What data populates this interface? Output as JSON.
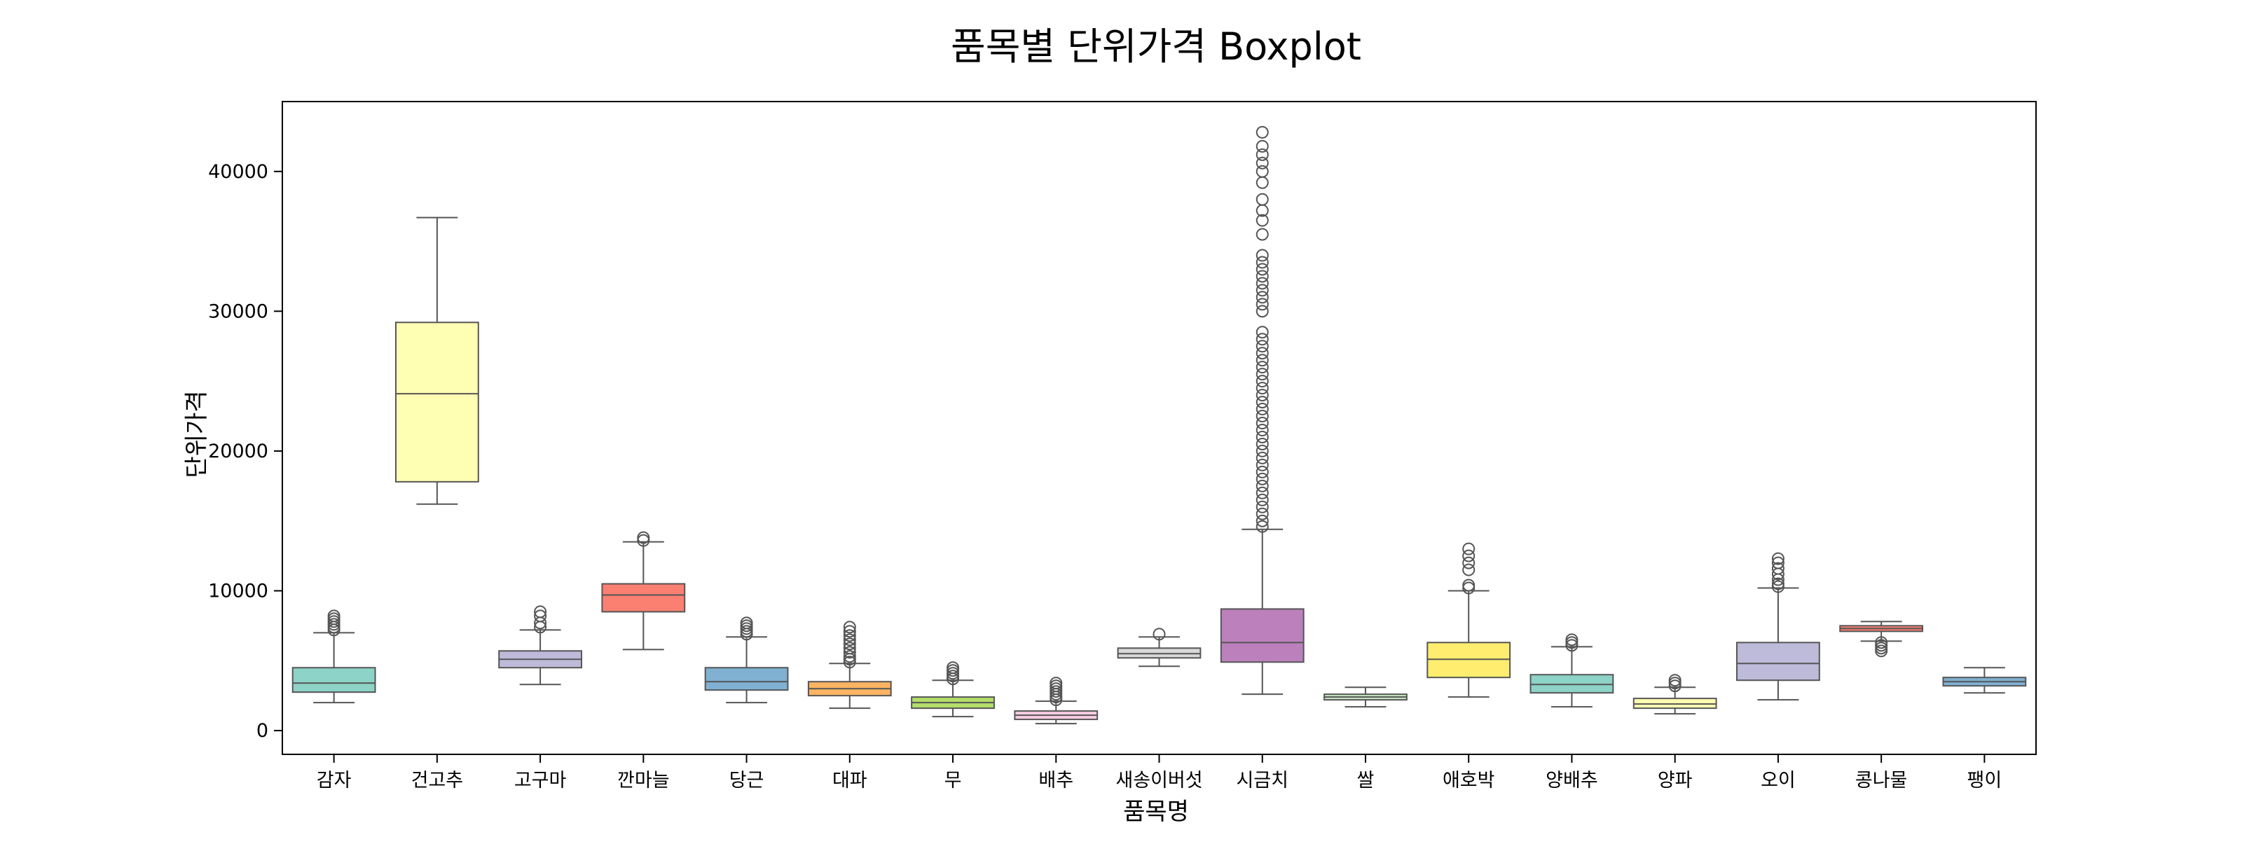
{
  "chart_data": {
    "type": "boxplot",
    "title": "품목별 단위가격 Boxplot",
    "xlabel": "품목명",
    "ylabel": "단위가격",
    "ylim": [
      -1700,
      45000
    ],
    "yticks": [
      0,
      10000,
      20000,
      30000,
      40000
    ],
    "grid": false,
    "categories": [
      "감자",
      "건고추",
      "고구마",
      "깐마늘",
      "당근",
      "대파",
      "무",
      "배추",
      "새송이버섯",
      "시금치",
      "쌀",
      "애호박",
      "양배추",
      "양파",
      "오이",
      "콩나물",
      "팽이"
    ],
    "colors": [
      "#8dd3c7",
      "#ffffb3",
      "#bebada",
      "#fb8072",
      "#80b1d3",
      "#fdb462",
      "#b3de69",
      "#fccde5",
      "#d9d9d9",
      "#bc80bd",
      "#ccebc5",
      "#ffed6f",
      "#8dd3c7",
      "#ffffb3",
      "#bebada",
      "#fb8072",
      "#80b1d3"
    ],
    "boxes": [
      {
        "category": "감자",
        "whislo": 2000,
        "q1": 2750,
        "med": 3400,
        "q3": 4500,
        "whishi": 7000,
        "fliers": [
          7200,
          7400,
          7600,
          7800,
          8000,
          8200
        ]
      },
      {
        "category": "건고추",
        "whislo": 16200,
        "q1": 17800,
        "med": 24100,
        "q3": 29200,
        "whishi": 36700,
        "fliers": []
      },
      {
        "category": "고구마",
        "whislo": 3300,
        "q1": 4500,
        "med": 5100,
        "q3": 5700,
        "whishi": 7200,
        "fliers": [
          7400,
          7700,
          8200,
          8500
        ]
      },
      {
        "category": "깐마늘",
        "whislo": 5800,
        "q1": 8500,
        "med": 9700,
        "q3": 10500,
        "whishi": 13500,
        "fliers": [
          13600,
          13800
        ]
      },
      {
        "category": "당근",
        "whislo": 2000,
        "q1": 2900,
        "med": 3500,
        "q3": 4500,
        "whishi": 6700,
        "fliers": [
          6900,
          7100,
          7300,
          7500,
          7700
        ]
      },
      {
        "category": "대파",
        "whislo": 1600,
        "q1": 2500,
        "med": 3000,
        "q3": 3500,
        "whishi": 4800,
        "fliers": [
          4900,
          5100,
          5300,
          5600,
          5900,
          6200,
          6500,
          6800,
          7100,
          7400
        ]
      },
      {
        "category": "무",
        "whislo": 1000,
        "q1": 1600,
        "med": 2000,
        "q3": 2400,
        "whishi": 3600,
        "fliers": [
          3700,
          3900,
          4100,
          4300,
          4500
        ]
      },
      {
        "category": "배추",
        "whislo": 500,
        "q1": 800,
        "med": 1100,
        "q3": 1400,
        "whishi": 2100,
        "fliers": [
          2200,
          2400,
          2600,
          2800,
          3000,
          3200,
          3400
        ]
      },
      {
        "category": "새송이버섯",
        "whislo": 4600,
        "q1": 5200,
        "med": 5500,
        "q3": 5900,
        "whishi": 6700,
        "fliers": [
          6900
        ]
      },
      {
        "category": "시금치",
        "whislo": 2600,
        "q1": 4900,
        "med": 6300,
        "q3": 8700,
        "whishi": 14400,
        "fliers": [
          14600,
          15000,
          15500,
          16000,
          16500,
          17000,
          17500,
          18000,
          18500,
          19000,
          19500,
          20000,
          20500,
          21000,
          21500,
          22000,
          22500,
          23000,
          23500,
          24000,
          24500,
          25000,
          25500,
          26000,
          26500,
          27000,
          27500,
          28000,
          28500,
          30000,
          30500,
          31000,
          31500,
          32000,
          32500,
          33000,
          33500,
          34000,
          35500,
          36500,
          37200,
          38000,
          39200,
          40000,
          40600,
          41200,
          41800,
          42800
        ]
      },
      {
        "category": "쌀",
        "whislo": 1700,
        "q1": 2200,
        "med": 2400,
        "q3": 2600,
        "whishi": 3100,
        "fliers": []
      },
      {
        "category": "애호박",
        "whislo": 2400,
        "q1": 3800,
        "med": 5100,
        "q3": 6300,
        "whishi": 10000,
        "fliers": [
          10200,
          10400,
          11500,
          12000,
          12500,
          13000
        ]
      },
      {
        "category": "양배추",
        "whislo": 1700,
        "q1": 2700,
        "med": 3300,
        "q3": 4000,
        "whishi": 6000,
        "fliers": [
          6100,
          6300,
          6500
        ]
      },
      {
        "category": "양파",
        "whislo": 1200,
        "q1": 1600,
        "med": 1900,
        "q3": 2300,
        "whishi": 3100,
        "fliers": [
          3200,
          3400,
          3600
        ]
      },
      {
        "category": "오이",
        "whislo": 2200,
        "q1": 3600,
        "med": 4800,
        "q3": 6300,
        "whishi": 10200,
        "fliers": [
          10300,
          10500,
          10800,
          11200,
          11600,
          12000,
          12300
        ]
      },
      {
        "category": "콩나물",
        "whislo": 6400,
        "q1": 7100,
        "med": 7300,
        "q3": 7500,
        "whishi": 7800,
        "fliers": [
          5700,
          5900,
          6100,
          6300
        ]
      },
      {
        "category": "팽이",
        "whislo": 2700,
        "q1": 3200,
        "med": 3500,
        "q3": 3800,
        "whishi": 4500,
        "fliers": []
      }
    ]
  }
}
